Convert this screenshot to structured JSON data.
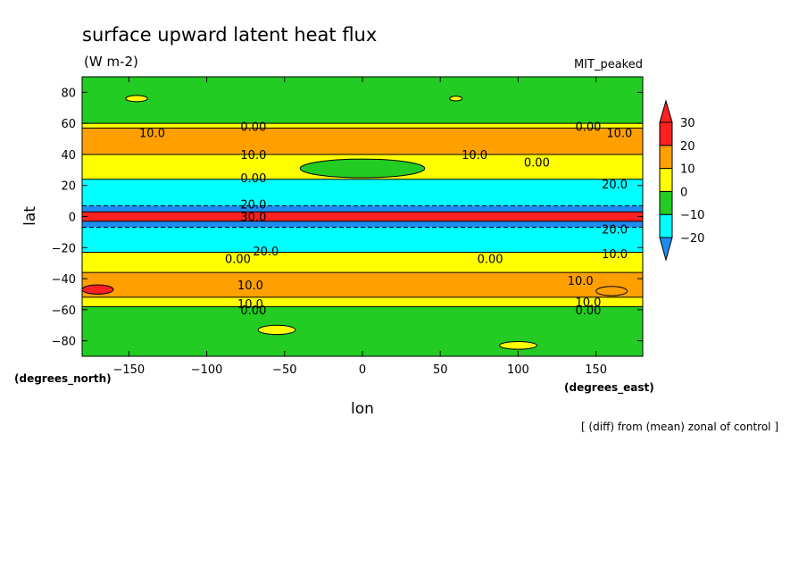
{
  "chart_data": {
    "type": "heatmap",
    "title": "surface upward latent heat flux",
    "subtitle": "(W m-2)",
    "model_label": "MIT_peaked",
    "xlabel": "lon",
    "ylabel": "lat",
    "xunit": "(degrees_east)",
    "yunit": "(degrees_north)",
    "footnote": "[ (diff) from (mean) zonal of control ]",
    "xlim": [
      -180,
      180
    ],
    "ylim": [
      -90,
      90
    ],
    "xticks": [
      -150,
      -100,
      -50,
      0,
      50,
      100,
      150
    ],
    "yticks": [
      -80,
      -60,
      -40,
      -20,
      0,
      20,
      40,
      60,
      80
    ],
    "colorbar": {
      "levels": [
        -20,
        -10,
        0,
        10,
        20,
        30
      ],
      "colors": [
        "#1e8cf0",
        "#00ffff",
        "#22cc22",
        "#ffff00",
        "#ffa000",
        "#ff2020"
      ]
    },
    "bands": [
      {
        "lat": [
          60,
          90
        ],
        "value": -5
      },
      {
        "lat": [
          57,
          60
        ],
        "value": 5
      },
      {
        "lat": [
          40,
          57
        ],
        "value": 12
      },
      {
        "lat": [
          24,
          40
        ],
        "value": 5
      },
      {
        "lat": [
          7,
          24
        ],
        "value": -15
      },
      {
        "lat": [
          3,
          7
        ],
        "value": -25
      },
      {
        "lat": [
          -3,
          3
        ],
        "value": 32
      },
      {
        "lat": [
          -7,
          -3
        ],
        "value": -25
      },
      {
        "lat": [
          -23,
          -7
        ],
        "value": -15
      },
      {
        "lat": [
          -36,
          -23
        ],
        "value": 5
      },
      {
        "lat": [
          -52,
          -36
        ],
        "value": 12
      },
      {
        "lat": [
          -58,
          -52
        ],
        "value": 5
      },
      {
        "lat": [
          -90,
          -58
        ],
        "value": -5
      }
    ],
    "patches": [
      {
        "lon": -145,
        "lat": 76,
        "rx": 7,
        "ry": 2,
        "value": 5
      },
      {
        "lon": 60,
        "lat": 76,
        "rx": 4,
        "ry": 1.5,
        "value": 5
      },
      {
        "lon": 0,
        "lat": 31,
        "rx": 40,
        "ry": 6,
        "value": -5
      },
      {
        "lon": -170,
        "lat": -47,
        "rx": 10,
        "ry": 3,
        "value": 25
      },
      {
        "lon": -55,
        "lat": -73,
        "rx": 12,
        "ry": 3,
        "value": 5
      },
      {
        "lon": 100,
        "lat": -83,
        "rx": 12,
        "ry": 2.5,
        "value": 5
      },
      {
        "lon": 160,
        "lat": -48,
        "rx": 10,
        "ry": 3,
        "value": 15
      }
    ],
    "contour_labels": [
      {
        "text": "0.00",
        "lon": -70,
        "lat": 58
      },
      {
        "text": "10.0",
        "lon": -135,
        "lat": 54
      },
      {
        "text": "10.0",
        "lon": -70,
        "lat": 40
      },
      {
        "text": "0.00",
        "lon": -70,
        "lat": 25
      },
      {
        "text": "0.00",
        "lon": 145,
        "lat": 58
      },
      {
        "text": "10.0",
        "lon": 165,
        "lat": 54
      },
      {
        "text": "10.0",
        "lon": 72,
        "lat": 40
      },
      {
        "text": "0.00",
        "lon": 112,
        "lat": 35
      },
      {
        "text": "20.0",
        "lon": 162,
        "lat": 21
      },
      {
        "text": "20.0",
        "lon": -70,
        "lat": 8
      },
      {
        "text": "30.0",
        "lon": -70,
        "lat": 0
      },
      {
        "text": "20.0",
        "lon": 162,
        "lat": -8
      },
      {
        "text": "20.0",
        "lon": -62,
        "lat": -22
      },
      {
        "text": "0.00",
        "lon": -80,
        "lat": -27
      },
      {
        "text": "0.00",
        "lon": 82,
        "lat": -27
      },
      {
        "text": "10.0",
        "lon": 162,
        "lat": -24
      },
      {
        "text": "10.0",
        "lon": -72,
        "lat": -44
      },
      {
        "text": "10.0",
        "lon": 140,
        "lat": -41
      },
      {
        "text": "10.0",
        "lon": -72,
        "lat": -56
      },
      {
        "text": "0.00",
        "lon": -70,
        "lat": -60
      },
      {
        "text": "10.0",
        "lon": 145,
        "lat": -55
      },
      {
        "text": "0.00",
        "lon": 145,
        "lat": -60
      }
    ]
  }
}
